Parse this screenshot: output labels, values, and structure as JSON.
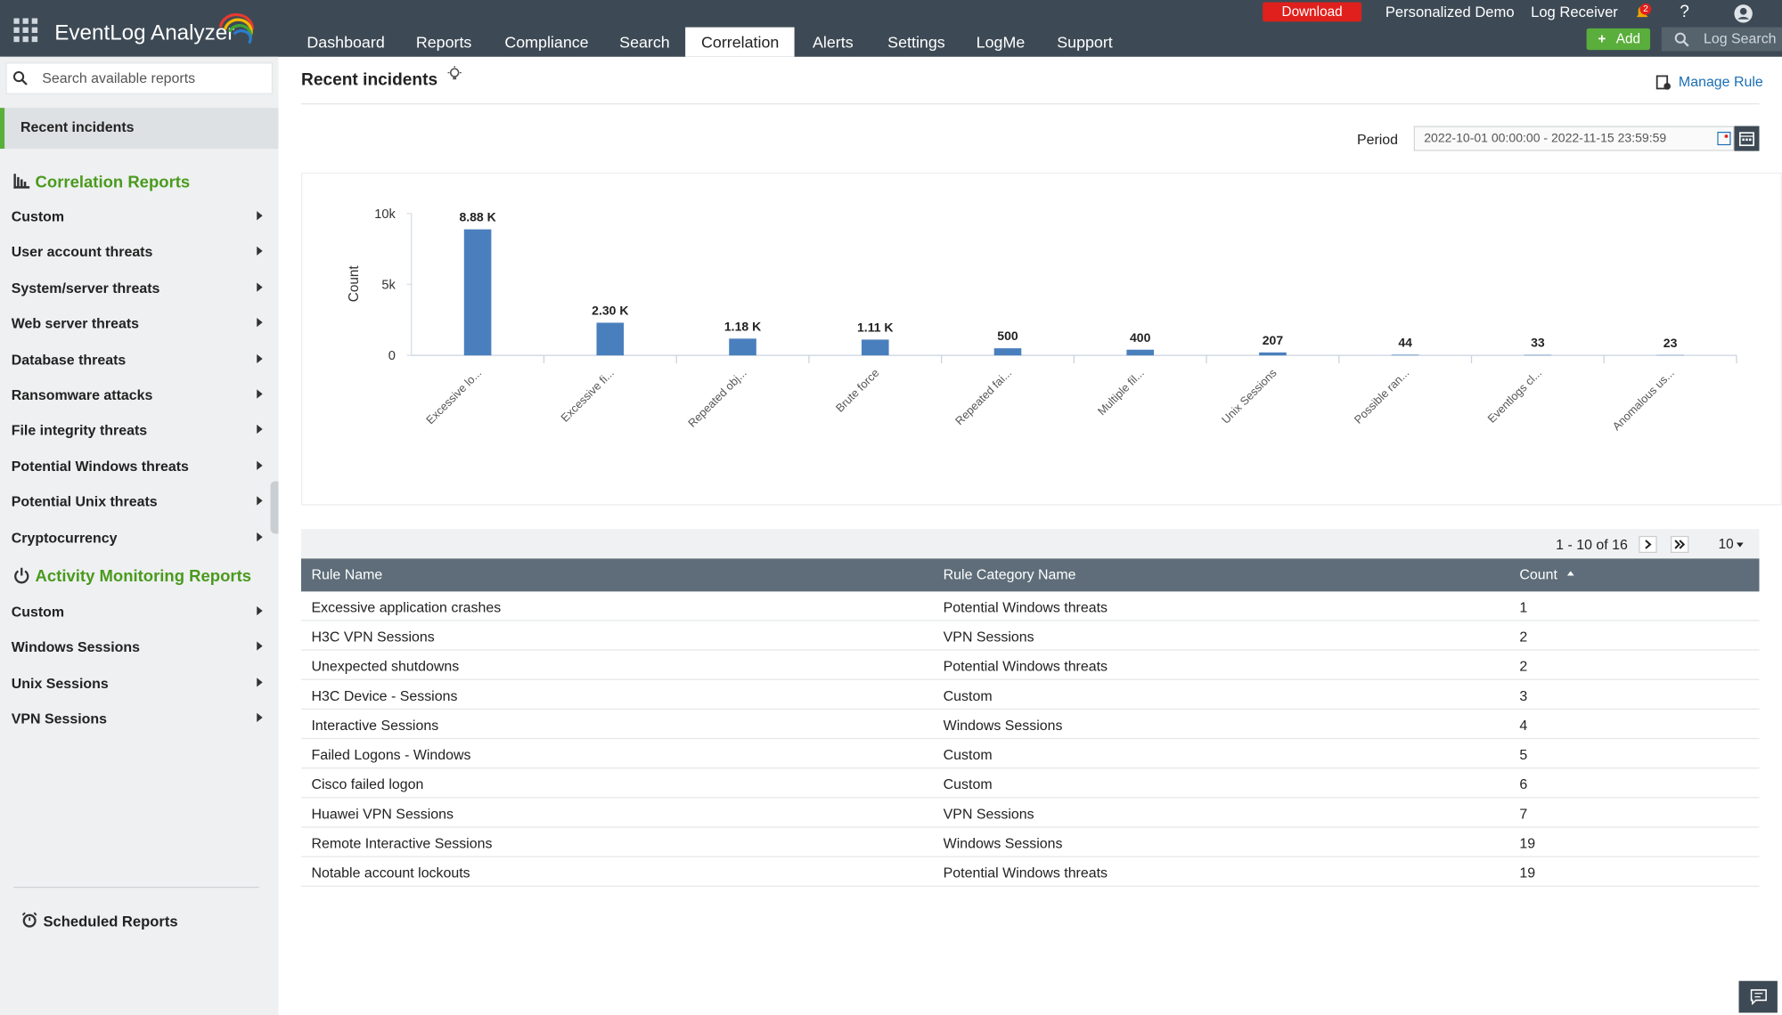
{
  "header": {
    "product": "EventLog Analyzer",
    "nav": [
      "Dashboard",
      "Reports",
      "Compliance",
      "Search",
      "Correlation",
      "Alerts",
      "Settings",
      "LogMe",
      "Support"
    ],
    "download": "Download",
    "personalized_demo": "Personalized Demo",
    "log_receiver": "Log Receiver",
    "notifications": "2",
    "help": "?",
    "add": "Add",
    "log_search": "Log Search"
  },
  "sidebar": {
    "search_placeholder": "Search available reports",
    "recent": "Recent incidents",
    "correlation_title": "Correlation Reports",
    "correlation_items": [
      "Custom",
      "User account threats",
      "System/server threats",
      "Web server threats",
      "Database threats",
      "Ransomware attacks",
      "File integrity threats",
      "Potential Windows threats",
      "Potential Unix threats",
      "Cryptocurrency"
    ],
    "activity_title": "Activity Monitoring Reports",
    "activity_items": [
      "Custom",
      "Windows Sessions",
      "Unix Sessions",
      "VPN Sessions"
    ],
    "scheduled": "Scheduled Reports"
  },
  "main": {
    "title": "Recent incidents",
    "manage_rule": "Manage Rule",
    "period_label": "Period",
    "period": "2022-10-01 00:00:00 - 2022-11-15 23:59:59"
  },
  "chart_data": {
    "type": "bar",
    "y_label": "Count",
    "categories": [
      "Excessive lo...",
      "Excessive fi...",
      "Repeated obj...",
      "Brute force",
      "Repeated fai...",
      "Multiple fil...",
      "Unix Sessions",
      "Possible ran...",
      "Eventlogs cl...",
      "Anomalous us..."
    ],
    "values": [
      8880,
      2300,
      1180,
      1110,
      500,
      400,
      207,
      44,
      33,
      23
    ],
    "value_labels": [
      "8.88 K",
      "2.30 K",
      "1.18 K",
      "1.11 K",
      "500",
      "400",
      "207",
      "44",
      "33",
      "23"
    ],
    "color": "#4a7fbd",
    "ylim": [
      0,
      10000
    ],
    "yticks": [
      0,
      {
        "value": 5000,
        "label": "5k"
      },
      {
        "value": 10000,
        "label": "10k"
      }
    ]
  },
  "table": {
    "pagination": "1 - 10 of 16",
    "page_size": "10",
    "columns": [
      "Rule Name",
      "Rule Category Name",
      "Count"
    ],
    "rows": [
      [
        "Excessive application crashes",
        "Potential Windows threats",
        "1"
      ],
      [
        "H3C VPN Sessions",
        "VPN Sessions",
        "2"
      ],
      [
        "Unexpected shutdowns",
        "Potential Windows threats",
        "2"
      ],
      [
        "H3C Device - Sessions",
        "Custom",
        "3"
      ],
      [
        "Interactive Sessions",
        "Windows Sessions",
        "4"
      ],
      [
        "Failed Logons - Windows",
        "Custom",
        "5"
      ],
      [
        "Cisco failed logon",
        "Custom",
        "6"
      ],
      [
        "Huawei VPN Sessions",
        "VPN Sessions",
        "7"
      ],
      [
        "Remote Interactive Sessions",
        "Windows Sessions",
        "19"
      ],
      [
        "Notable account lockouts",
        "Potential Windows threats",
        "19"
      ]
    ]
  }
}
